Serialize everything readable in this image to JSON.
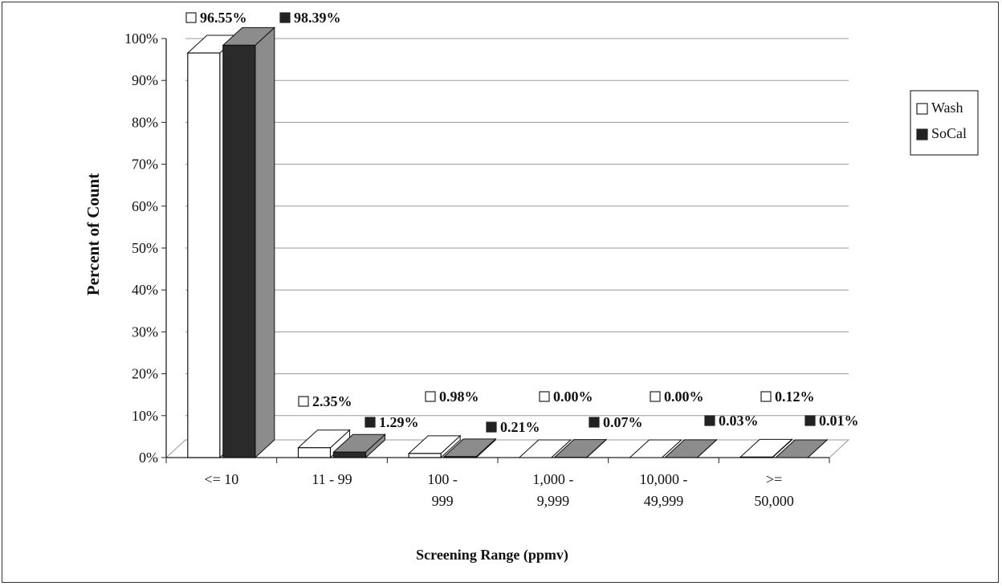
{
  "chart_data": {
    "type": "bar",
    "categories": [
      [
        "<= 10"
      ],
      [
        "11 - 99"
      ],
      [
        "100 -",
        "999"
      ],
      [
        "1,000 -",
        "9,999"
      ],
      [
        "10,000 -",
        "49,999"
      ],
      [
        ">=",
        "50,000"
      ]
    ],
    "series": [
      {
        "name": "Wash",
        "values": [
          96.55,
          2.35,
          0.98,
          0.0,
          0.0,
          0.12
        ],
        "labels": [
          "96.55%",
          "2.35%",
          "0.98%",
          "0.00%",
          "0.00%",
          "0.12%"
        ]
      },
      {
        "name": "SoCal",
        "values": [
          98.39,
          1.29,
          0.21,
          0.07,
          0.03,
          0.01
        ],
        "labels": [
          "98.39%",
          "1.29%",
          "0.21%",
          "0.07%",
          "0.03%",
          "0.01%"
        ]
      }
    ],
    "title": "",
    "xlabel": "Screening Range (ppmv)",
    "ylabel": "Percent of Count",
    "ylim": [
      0,
      100
    ],
    "yticks": [
      "0%",
      "10%",
      "20%",
      "30%",
      "40%",
      "50%",
      "60%",
      "70%",
      "80%",
      "90%",
      "100%"
    ],
    "grid": true,
    "legend_position": "right",
    "colors": {
      "wash_face": "#ffffff",
      "socal_face": "#2a2a2a",
      "socal_side": "#8c8c8c",
      "grid": "#9a9a9a"
    }
  }
}
